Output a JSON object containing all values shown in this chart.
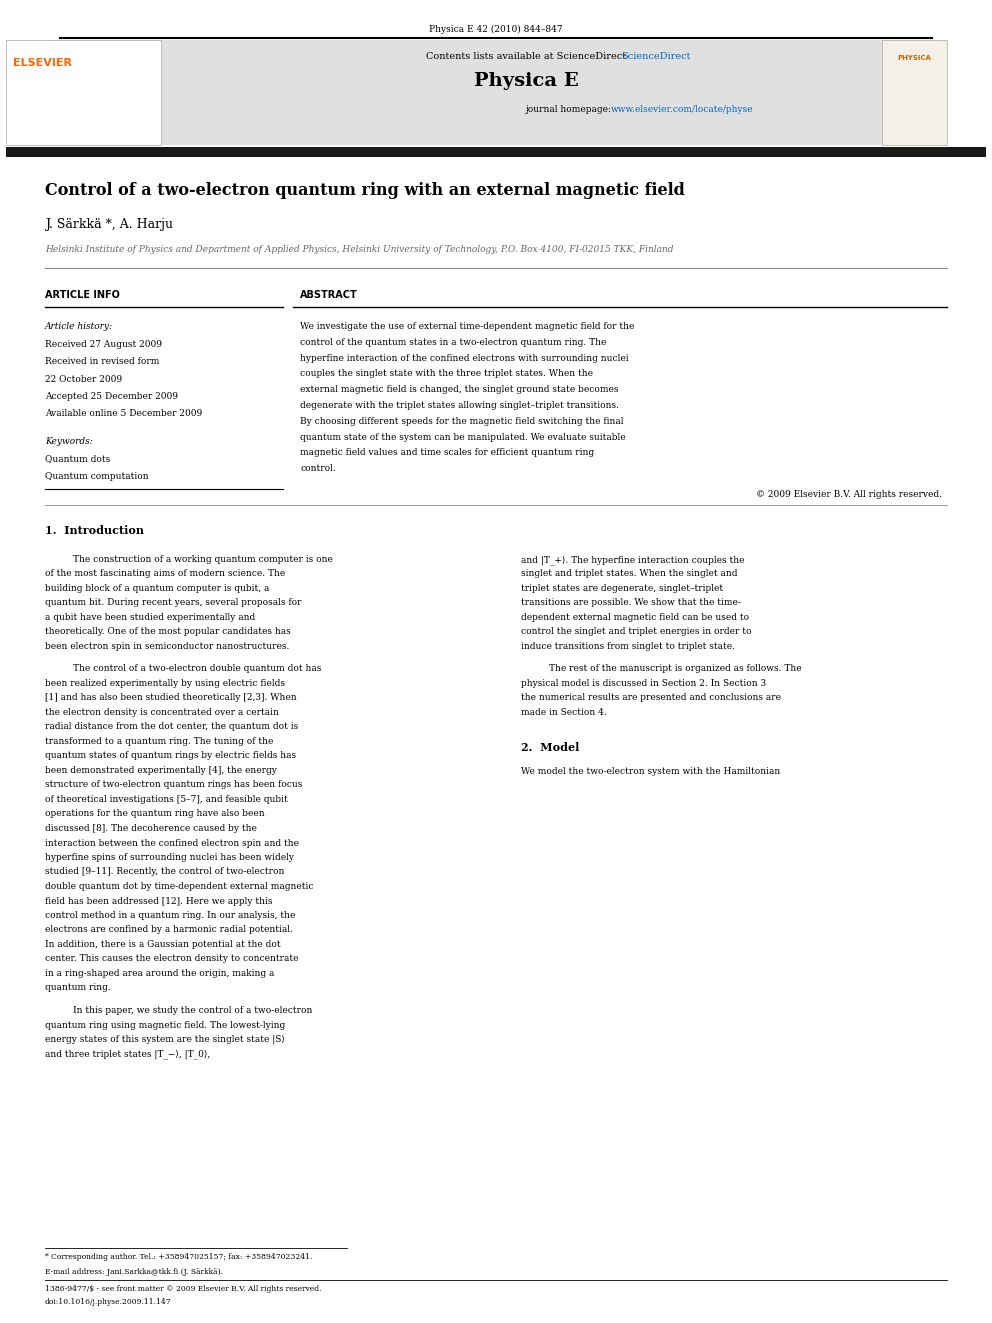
{
  "page_width": 9.92,
  "page_height": 13.23,
  "bg_color": "#ffffff",
  "journal_header_text": "Physica E 42 (2010) 844–847",
  "header_bg": "#e8e8e8",
  "contents_text": "Contents lists available at ScienceDirect",
  "sciencedirect_color": "#0066cc",
  "journal_name": "Physica E",
  "journal_url": "journal homepage: www.elsevier.com/locate/physe",
  "url_color": "#0066cc",
  "title": "Control of a two-electron quantum ring with an external magnetic field",
  "authors": "J. Särkkä *, A. Harju",
  "affiliation": "Helsinki Institute of Physics and Department of Applied Physics, Helsinki University of Technology, P.O. Box 4100, FI-02015 TKK, Finland",
  "article_info_header": "ARTICLE INFO",
  "abstract_header": "ABSTRACT",
  "article_history_label": "Article history:",
  "received1": "Received 27 August 2009",
  "received2": "Received in revised form",
  "received2b": "22 October 2009",
  "accepted": "Accepted 25 December 2009",
  "available": "Available online 5 December 2009",
  "keywords_label": "Keywords:",
  "keyword1": "Quantum dots",
  "keyword2": "Quantum computation",
  "abstract_text": "We investigate the use of external time-dependent magnetic field for the control of the quantum states in a two-electron quantum ring. The hyperfine interaction of the confined electrons with surrounding nuclei couples the singlet state with the three triplet states. When the external magnetic field is changed, the singlet ground state becomes degenerate with the triplet states allowing singlet–triplet transitions. By choosing different speeds for the magnetic field switching the final quantum state of the system can be manipulated. We evaluate suitable magnetic field values and time scales for efficient quantum ring control.",
  "copyright": "© 2009 Elsevier B.V. All rights reserved.",
  "section1_title": "1.  Introduction",
  "intro_para1": "The construction of a working quantum computer is one of the most fascinating aims of modern science. The building block of a quantum computer is qubit, a quantum bit. During recent years, several proposals for a qubit have been studied experimentally and theoretically. One of the most popular candidates has been electron spin in semiconductor nanostructures.",
  "intro_para2": "The control of a two-electron double quantum dot has been realized experimentally by using electric fields [1] and has also been studied theoretically [2,3]. When the electron density is concentrated over a certain radial distance from the dot center, the quantum dot is transformed to a quantum ring. The tuning of the quantum states of quantum rings by electric fields has been demonstrated experimentally [4], the energy structure of two-electron quantum rings has been focus of theoretical investigations [5–7], and feasible qubit operations for the quantum ring have also been discussed [8]. The decoherence caused by the interaction between the confined electron spin and the hyperfine spins of surrounding nuclei has been widely studied [9–11]. Recently, the control of two-electron double quantum dot by time-dependent external magnetic field has been addressed [12]. Here we apply this control method in a quantum ring. In our analysis, the electrons are confined by a harmonic radial potential. In addition, there is a Gaussian potential at the dot center. This causes the electron density to concentrate in a ring-shaped area around the origin, making a quantum ring.",
  "intro_para3": "In this paper, we study the control of a two-electron quantum ring using magnetic field. The lowest-lying energy states of this system are the singlet state |S⟩ and three triplet states |T_−⟩, |T_0⟩,",
  "right_col_intro1": "and |T_+⟩. The hyperfine interaction couples the singlet and triplet states. When the singlet and triplet states are degenerate, singlet–triplet transitions are possible. We show that the time-dependent external magnetic field can be used to control the singlet and triplet energies in order to induce transitions from singlet to triplet state.",
  "right_col_intro2": "The rest of the manuscript is organized as follows. The physical model is discussed in Section 2. In Section 3 the numerical results are presented and conclusions are made in Section 4.",
  "section2_title": "2.  Model",
  "model_para1": "We model the two-electron system with the Hamiltonian",
  "footnote_corresponding": "* Corresponding author. Tel.: +358947025157; fax: +358947023241.",
  "footnote_email": "E-mail address: Jani.Sarkka@tkk.fi (J. Särkkä).",
  "footer_issn": "1386-9477/$ - see front matter © 2009 Elsevier B.V. All rights reserved.",
  "footer_doi": "doi:10.1016/j.physe.2009.11.147",
  "elsevier_color": "#ff6600",
  "dark_color": "#000000",
  "gray_color": "#666666",
  "light_gray": "#d0d0d0",
  "header_gray": "#e0e0e0"
}
